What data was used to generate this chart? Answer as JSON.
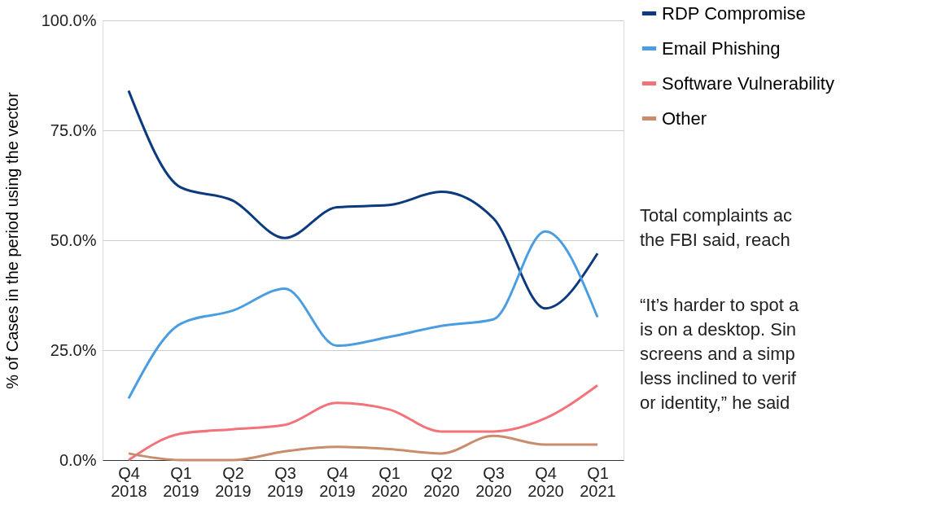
{
  "chart_data": {
    "type": "line",
    "ylabel": "% of Cases in the period using the vector",
    "categories": [
      "Q4 2018",
      "Q1 2019",
      "Q2 2019",
      "Q3 2019",
      "Q4 2019",
      "Q1 2020",
      "Q2 2020",
      "Q3 2020",
      "Q4 2020",
      "Q1 2021"
    ],
    "series": [
      {
        "name": "RDP Compromise",
        "color": "#0b3a7e",
        "values": [
          84,
          62,
          59,
          50.5,
          57.5,
          58,
          61,
          55,
          34.5,
          47
        ]
      },
      {
        "name": "Email Phishing",
        "color": "#4a9de0",
        "values": [
          14,
          31,
          34,
          39,
          26,
          28,
          30.5,
          32,
          52,
          32.5
        ]
      },
      {
        "name": "Software Vulnerability",
        "color": "#f2737a",
        "values": [
          0,
          6,
          7,
          8,
          13,
          11.5,
          6.5,
          6.5,
          9.5,
          17
        ]
      },
      {
        "name": "Other",
        "color": "#c98c6c",
        "values": [
          1.5,
          0,
          0,
          2,
          3,
          2.5,
          1.5,
          5.5,
          3.5,
          3.5
        ]
      }
    ],
    "ylim": [
      0,
      100
    ],
    "yticks": [
      {
        "value": 0,
        "label": "0.0%"
      },
      {
        "value": 25,
        "label": "25.0%"
      },
      {
        "value": 50,
        "label": "50.0%"
      },
      {
        "value": 75,
        "label": "75.0%"
      },
      {
        "value": 100,
        "label": "100.0%"
      }
    ],
    "grid": "y",
    "legend": "top right",
    "marker": "none",
    "line_style": "solid",
    "annotations": [
      "Total complaints ac\nthe FBI said, reach",
      "“It’s harder to spot a\nis on a desktop. Sin\nscreens and a simp\nless inclined to verif\nor identity,” he said"
    ]
  }
}
